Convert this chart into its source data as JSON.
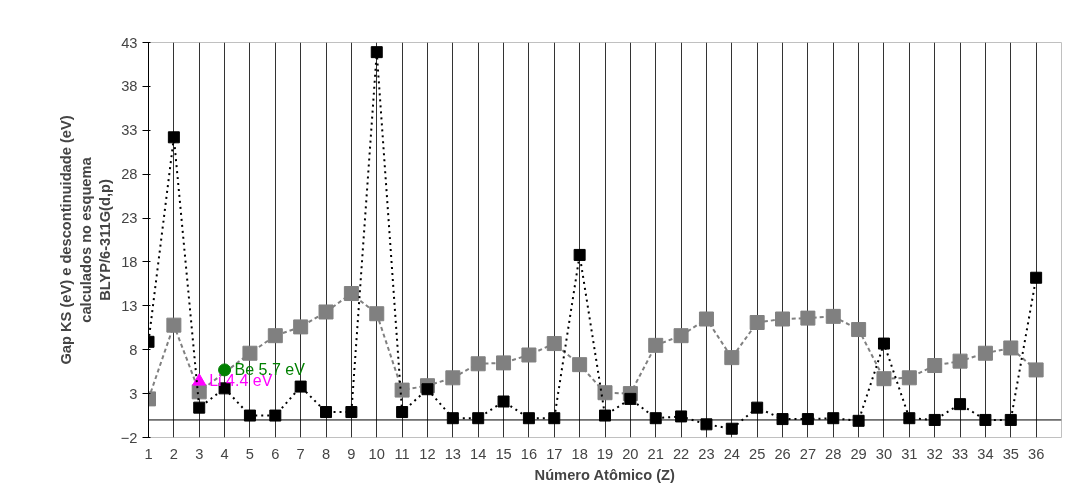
{
  "chart_data": {
    "type": "line",
    "xlabel": "Número Atômico (Z)",
    "ylabel": "Gap KS (eV) e descontinuidade (eV)\ncalculados no esquema\nBLYP/6-311G(d,p)",
    "x": [
      1,
      2,
      3,
      4,
      5,
      6,
      7,
      8,
      9,
      10,
      11,
      12,
      13,
      14,
      15,
      16,
      17,
      18,
      19,
      20,
      21,
      22,
      23,
      24,
      25,
      26,
      27,
      28,
      29,
      30,
      31,
      32,
      33,
      34,
      35,
      36
    ],
    "series": [
      {
        "color": "#000000",
        "line_style": "dotted",
        "values": [
          8.9,
          32.2,
          1.4,
          3.6,
          0.5,
          0.5,
          3.8,
          0.9,
          0.9,
          41.9,
          0.9,
          3.5,
          0.2,
          0.2,
          2.1,
          0.2,
          0.2,
          18.8,
          0.5,
          2.4,
          0.2,
          0.4,
          -0.5,
          -1.0,
          1.4,
          0.1,
          0.1,
          0.2,
          -0.1,
          8.7,
          0.2,
          0.0,
          1.8,
          0.0,
          0.0,
          16.2
        ]
      },
      {
        "color": "#808080",
        "line_style": "dashed",
        "values": [
          2.4,
          10.8,
          3.2,
          null,
          7.6,
          9.6,
          10.6,
          12.3,
          14.4,
          12.1,
          3.4,
          3.9,
          4.8,
          6.4,
          6.5,
          7.4,
          8.7,
          6.3,
          3.1,
          3.0,
          8.5,
          9.6,
          11.5,
          7.1,
          11.1,
          11.5,
          11.6,
          11.8,
          10.3,
          4.7,
          4.8,
          6.2,
          6.7,
          7.6,
          8.2,
          5.7
        ]
      },
      {
        "type": "scatter",
        "marker": "triangle",
        "color": "#ff00ff",
        "x": [
          3
        ],
        "values": [
          4.4
        ],
        "value_labels": [
          "Li 4.4 eV"
        ]
      },
      {
        "type": "scatter",
        "marker": "circle",
        "color": "#008000",
        "x": [
          4
        ],
        "values": [
          5.7
        ],
        "value_labels": [
          "Be 5.7 eV"
        ]
      }
    ],
    "marker": "square",
    "xlim": [
      1,
      37
    ],
    "xticks": [
      1,
      2,
      3,
      4,
      5,
      6,
      7,
      8,
      9,
      10,
      11,
      12,
      13,
      14,
      15,
      16,
      17,
      18,
      19,
      20,
      21,
      22,
      23,
      24,
      25,
      26,
      27,
      28,
      29,
      30,
      31,
      32,
      33,
      34,
      35,
      36
    ],
    "ylim": [
      -2,
      43
    ],
    "yticks": [
      -2,
      3,
      8,
      13,
      18,
      23,
      28,
      33,
      38,
      43
    ],
    "grid": "x",
    "ref_lines": [
      {
        "axis": "y",
        "value": 0,
        "color": "#000000"
      }
    ]
  }
}
